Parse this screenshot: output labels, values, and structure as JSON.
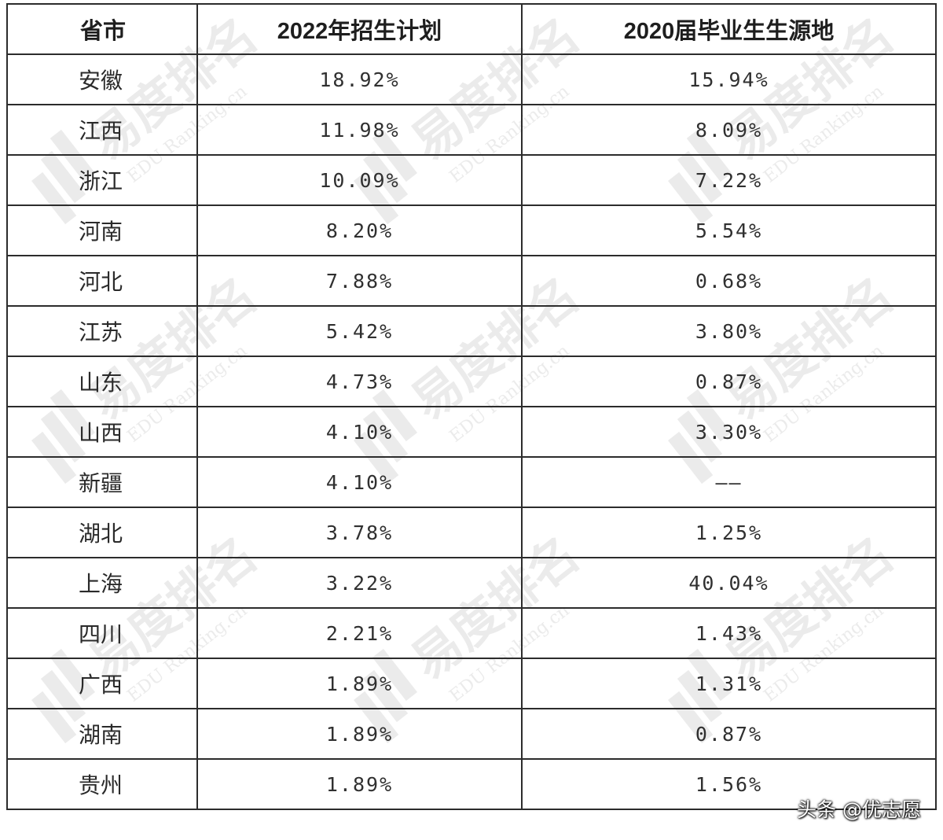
{
  "table": {
    "headers": [
      "省市",
      "2022年招生计划",
      "2020届毕业生生源地"
    ],
    "rows": [
      [
        "安徽",
        "18.92%",
        "15.94%"
      ],
      [
        "江西",
        "11.98%",
        "8.09%"
      ],
      [
        "浙江",
        "10.09%",
        "7.22%"
      ],
      [
        "河南",
        "8.20%",
        "5.54%"
      ],
      [
        "河北",
        "7.88%",
        "0.68%"
      ],
      [
        "江苏",
        "5.42%",
        "3.80%"
      ],
      [
        "山东",
        "4.73%",
        "0.87%"
      ],
      [
        "山西",
        "4.10%",
        "3.30%"
      ],
      [
        "新疆",
        "4.10%",
        "——"
      ],
      [
        "湖北",
        "3.78%",
        "1.25%"
      ],
      [
        "上海",
        "3.22%",
        "40.04%"
      ],
      [
        "四川",
        "2.21%",
        "1.43%"
      ],
      [
        "广西",
        "1.89%",
        "1.31%"
      ],
      [
        "湖南",
        "1.89%",
        "0.87%"
      ],
      [
        "贵州",
        "1.89%",
        "1.56%"
      ]
    ]
  },
  "watermark": {
    "brand": "易度排名",
    "subtext": "EDU Ranking.cn"
  },
  "credit": "头条 @优志愿",
  "colors": {
    "border": "#2c2c2c",
    "text": "#2a2a2a",
    "watermark": "#dcdcdc",
    "background": "#ffffff"
  }
}
